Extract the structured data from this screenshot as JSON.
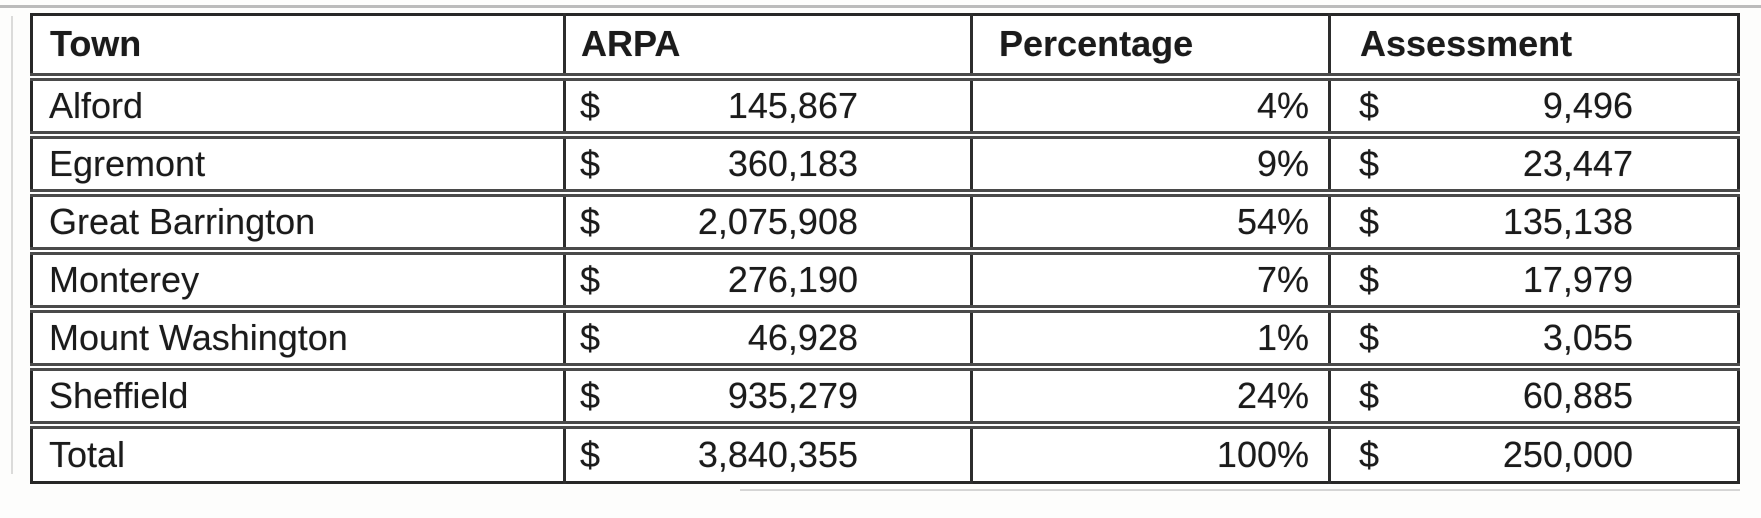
{
  "document": {
    "kind": "scanned-table",
    "text_color": "#1b1b1b",
    "border_color": "#2d2d2d",
    "background_color": "#ffffff"
  },
  "table": {
    "currency_symbol": "$",
    "headers": {
      "town": "Town",
      "arpa": "ARPA",
      "percentage": "Percentage",
      "assessment": "Assessment"
    },
    "rows": [
      {
        "town": "Alford",
        "arpa": "145,867",
        "percentage": "4%",
        "assessment": "9,496"
      },
      {
        "town": "Egremont",
        "arpa": "360,183",
        "percentage": "9%",
        "assessment": "23,447"
      },
      {
        "town": "Great Barrington",
        "arpa": "2,075,908",
        "percentage": "54%",
        "assessment": "135,138"
      },
      {
        "town": "Monterey",
        "arpa": "276,190",
        "percentage": "7%",
        "assessment": "17,979"
      },
      {
        "town": "Mount Washington",
        "arpa": "46,928",
        "percentage": "1%",
        "assessment": "3,055"
      },
      {
        "town": "Sheffield",
        "arpa": "935,279",
        "percentage": "24%",
        "assessment": "60,885"
      },
      {
        "town": "Total",
        "arpa": "3,840,355",
        "percentage": "100%",
        "assessment": "250,000"
      }
    ]
  }
}
